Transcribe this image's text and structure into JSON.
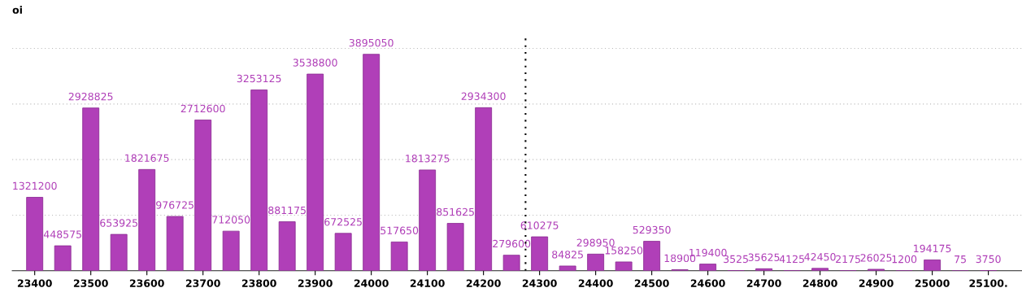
{
  "chart_data": {
    "type": "bar",
    "ylabel": "oi",
    "x": [
      23400,
      23450,
      23500,
      23550,
      23600,
      23650,
      23700,
      23750,
      23800,
      23850,
      23900,
      23950,
      24000,
      24050,
      24100,
      24150,
      24200,
      24250,
      24300,
      24350,
      24400,
      24450,
      24500,
      24550,
      24600,
      24650,
      24700,
      24750,
      24800,
      24850,
      24900,
      24950,
      25000,
      25050,
      25100
    ],
    "values": [
      1321200,
      448575,
      2928825,
      653925,
      1821675,
      976725,
      2712600,
      712050,
      3253125,
      881175,
      3538800,
      672525,
      3895050,
      517650,
      1813275,
      851625,
      2934300,
      279600,
      610275,
      84825,
      298950,
      158250,
      529350,
      18900,
      119400,
      3525,
      35625,
      4125,
      42450,
      2175,
      26025,
      1200,
      194175,
      75,
      3750
    ],
    "color": "#b03fb8",
    "data_labels": true,
    "xlim": [
      23360,
      25160
    ],
    "xticks": [
      23400,
      23500,
      23600,
      23700,
      23800,
      23900,
      24000,
      24100,
      24200,
      24300,
      24400,
      24500,
      24600,
      24700,
      24800,
      24900,
      25000,
      {
        "value": 25100,
        "label": "25100."
      }
    ],
    "ylim": [
      0,
      4250000
    ],
    "yticks": [
      {
        "value": 1000000,
        "label": null
      },
      {
        "value": 2000000,
        "label": null
      },
      {
        "value": 3000000,
        "label": null
      },
      {
        "value": 4000000,
        "label": null
      }
    ],
    "tick_labels": "x",
    "grid": "y",
    "legend": false,
    "ref_lines": [
      {
        "axis": "x",
        "value": 24275,
        "color": "#000000",
        "line_style": "dotted"
      }
    ]
  }
}
